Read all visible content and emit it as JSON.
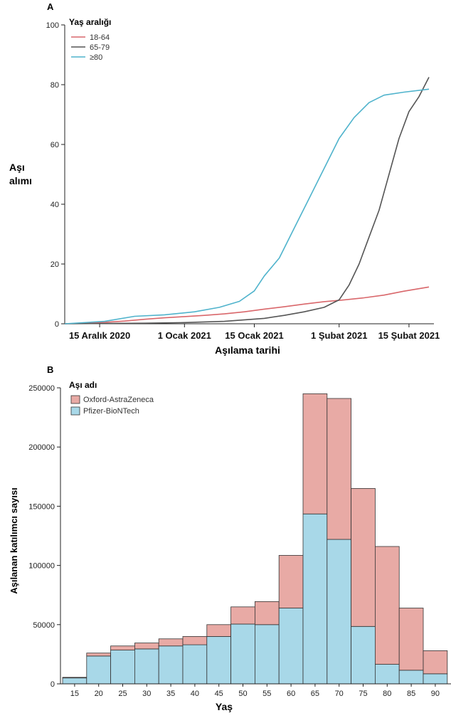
{
  "chart_data": [
    {
      "type": "line",
      "panel_label": "A",
      "legend_title": "Yaş aralığı",
      "ylabel_lines": [
        "Aşı",
        "alımı"
      ],
      "xlabel": "Aşılama tarihi",
      "ylim": [
        0,
        100
      ],
      "yticks": [
        "0",
        "20",
        "40",
        "60",
        "80",
        "100"
      ],
      "xlim": [
        "2020-12-08",
        "2021-02-20"
      ],
      "xticks": [
        {
          "date": "2020-12-15",
          "label": "15 Aralık 2020"
        },
        {
          "date": "2021-01-01",
          "label": "1 Ocak 2021"
        },
        {
          "date": "2021-01-15",
          "label": "15 Ocak 2021"
        },
        {
          "date": "2021-02-01",
          "label": "1 Şubat 2021"
        },
        {
          "date": "2021-02-15",
          "label": "15 Şubat 2021"
        }
      ],
      "legend_position": "top-left",
      "series": [
        {
          "name": "18-64",
          "color": "#d9676b",
          "x": [
            "2020-12-08",
            "2020-12-12",
            "2020-12-16",
            "2020-12-20",
            "2020-12-24",
            "2020-12-28",
            "2021-01-01",
            "2021-01-05",
            "2021-01-09",
            "2021-01-13",
            "2021-01-17",
            "2021-01-21",
            "2021-01-25",
            "2021-01-29",
            "2021-02-02",
            "2021-02-06",
            "2021-02-10",
            "2021-02-14",
            "2021-02-19"
          ],
          "y": [
            0,
            0.2,
            0.5,
            0.9,
            1.5,
            2.0,
            2.4,
            2.8,
            3.3,
            4.0,
            4.9,
            5.7,
            6.6,
            7.4,
            8.0,
            8.7,
            9.6,
            10.9,
            12.3
          ]
        },
        {
          "name": "65-79",
          "color": "#555555",
          "x": [
            "2020-12-08",
            "2020-12-16",
            "2020-12-24",
            "2021-01-01",
            "2021-01-09",
            "2021-01-17",
            "2021-01-21",
            "2021-01-25",
            "2021-01-29",
            "2021-02-01",
            "2021-02-03",
            "2021-02-05",
            "2021-02-07",
            "2021-02-09",
            "2021-02-11",
            "2021-02-13",
            "2021-02-15",
            "2021-02-17",
            "2021-02-19"
          ],
          "y": [
            0,
            0.1,
            0.2,
            0.4,
            0.8,
            1.8,
            2.8,
            4.0,
            5.5,
            8.0,
            13.0,
            20.0,
            29.0,
            38.0,
            50.0,
            62.0,
            71.0,
            76.0,
            82.5
          ]
        },
        {
          "name": "≥80",
          "color": "#4fb3cc",
          "x": [
            "2020-12-08",
            "2020-12-16",
            "2020-12-22",
            "2020-12-28",
            "2021-01-03",
            "2021-01-08",
            "2021-01-12",
            "2021-01-15",
            "2021-01-17",
            "2021-01-20",
            "2021-01-23",
            "2021-01-26",
            "2021-01-29",
            "2021-02-01",
            "2021-02-04",
            "2021-02-07",
            "2021-02-10",
            "2021-02-14",
            "2021-02-19"
          ],
          "y": [
            0,
            0.8,
            2.5,
            3.0,
            4.0,
            5.5,
            7.5,
            11.0,
            16.0,
            22.0,
            32.0,
            42.0,
            52.0,
            62.0,
            69.0,
            74.0,
            76.5,
            77.5,
            78.5
          ]
        }
      ]
    },
    {
      "type": "bar",
      "stacked": true,
      "panel_label": "B",
      "legend_title": "Aşı adı",
      "xlabel": "Yaş",
      "ylabel": "Aşılanan katılımcı sayısı",
      "ylim": [
        0,
        250000
      ],
      "yticks": [
        "0",
        "50000",
        "100000",
        "150000",
        "200000",
        "250000"
      ],
      "categories": [
        "15",
        "20",
        "25",
        "30",
        "35",
        "40",
        "45",
        "50",
        "55",
        "60",
        "65",
        "70",
        "75",
        "80",
        "85",
        "90"
      ],
      "legend_position": "top-left",
      "series": [
        {
          "name": "Pfizer-BioNTech",
          "color": "#a8d8e8",
          "values": [
            5000,
            23500,
            28500,
            29500,
            32000,
            33000,
            40000,
            50500,
            50000,
            64000,
            143500,
            122000,
            48500,
            16500,
            11500,
            8500
          ]
        },
        {
          "name": "Oxford-AstraZeneca",
          "color": "#e8aaa5",
          "values": [
            500,
            2500,
            3500,
            5000,
            6000,
            7000,
            10000,
            14500,
            19500,
            44500,
            101500,
            119000,
            116500,
            99500,
            52500,
            19500
          ]
        }
      ]
    }
  ]
}
